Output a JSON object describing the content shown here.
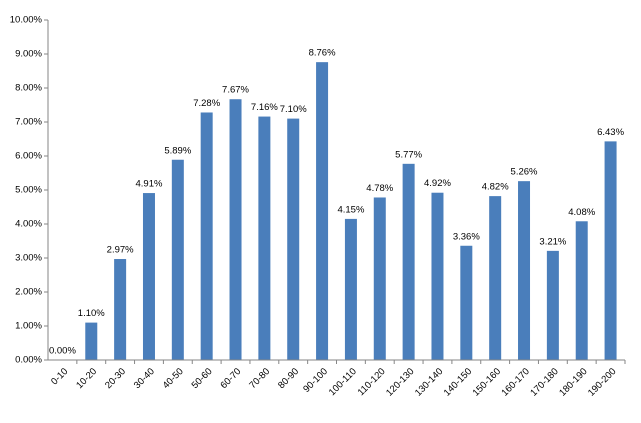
{
  "chart_data": {
    "type": "bar",
    "categories": [
      "0-10",
      "10-20",
      "20-30",
      "30-40",
      "40-50",
      "50-60",
      "60-70",
      "70-80",
      "80-90",
      "90-100",
      "100-110",
      "110-120",
      "120-130",
      "130-140",
      "140-150",
      "150-160",
      "160-170",
      "170-180",
      "180-190",
      "190-200"
    ],
    "values": [
      0.0,
      1.1,
      2.97,
      4.91,
      5.89,
      7.28,
      7.67,
      7.16,
      7.1,
      8.76,
      4.15,
      4.78,
      5.77,
      4.92,
      3.36,
      4.82,
      5.26,
      3.21,
      4.08,
      6.43
    ],
    "value_labels": [
      "0.00%",
      "1.10%",
      "2.97%",
      "4.91%",
      "5.89%",
      "7.28%",
      "7.67%",
      "7.16%",
      "7.10%",
      "8.76%",
      "4.15%",
      "4.78%",
      "5.77%",
      "4.92%",
      "3.36%",
      "4.82%",
      "5.26%",
      "3.21%",
      "4.08%",
      "6.43%"
    ],
    "color": "#4a7ebb",
    "ylim": [
      0,
      10
    ],
    "yticks": [
      {
        "value": 0,
        "label": "0.00%"
      },
      {
        "value": 1,
        "label": "1.00%"
      },
      {
        "value": 2,
        "label": "2.00%"
      },
      {
        "value": 3,
        "label": "3.00%"
      },
      {
        "value": 4,
        "label": "4.00%"
      },
      {
        "value": 5,
        "label": "5.00%"
      },
      {
        "value": 6,
        "label": "6.00%"
      },
      {
        "value": 7,
        "label": "7.00%"
      },
      {
        "value": 8,
        "label": "8.00%"
      },
      {
        "value": 9,
        "label": "9.00%"
      },
      {
        "value": 10,
        "label": "10.00%"
      }
    ],
    "grid": false
  }
}
